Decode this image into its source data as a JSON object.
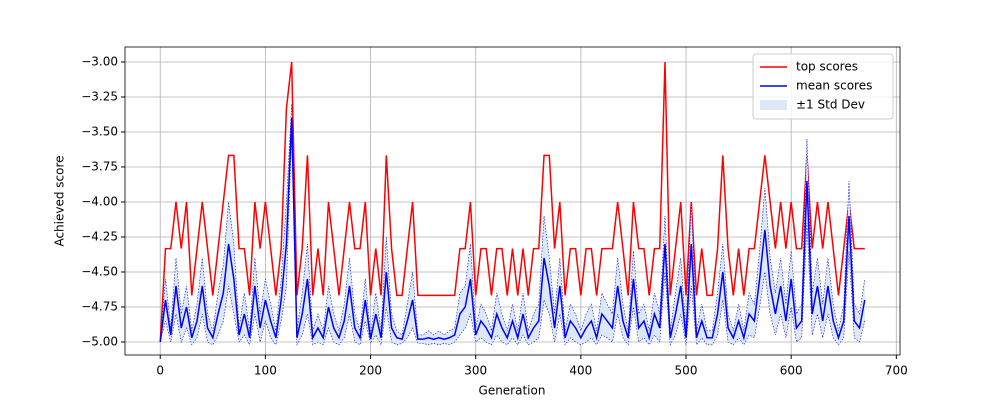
{
  "chart_data": {
    "type": "line",
    "x_label": "Generation",
    "y_label": "Achieved score",
    "x": [
      0,
      5,
      10,
      15,
      20,
      25,
      30,
      35,
      40,
      45,
      50,
      55,
      60,
      65,
      70,
      75,
      80,
      85,
      90,
      95,
      100,
      105,
      110,
      115,
      120,
      125,
      130,
      135,
      140,
      145,
      150,
      155,
      160,
      165,
      170,
      175,
      180,
      185,
      190,
      195,
      200,
      205,
      210,
      215,
      220,
      225,
      230,
      235,
      240,
      245,
      250,
      255,
      260,
      265,
      270,
      275,
      280,
      285,
      290,
      295,
      300,
      305,
      310,
      315,
      320,
      325,
      330,
      335,
      340,
      345,
      350,
      355,
      360,
      365,
      370,
      375,
      380,
      385,
      390,
      395,
      400,
      405,
      410,
      415,
      420,
      425,
      430,
      435,
      440,
      445,
      450,
      455,
      460,
      465,
      470,
      475,
      480,
      485,
      490,
      495,
      500,
      505,
      510,
      515,
      520,
      525,
      530,
      535,
      540,
      545,
      550,
      555,
      560,
      565,
      570,
      575,
      580,
      585,
      590,
      595,
      600,
      605,
      610,
      615,
      620,
      625,
      630,
      635,
      640,
      645,
      650,
      655,
      660,
      665,
      670
    ],
    "series": [
      {
        "name": "top scores",
        "color": "#ff0000",
        "values": [
          -5,
          -4.333,
          -4.333,
          -4,
          -4.333,
          -4,
          -4.667,
          -4.333,
          -4,
          -4.333,
          -4.667,
          -4.333,
          -4,
          -3.667,
          -3.667,
          -4.333,
          -4.333,
          -4.667,
          -4,
          -4.333,
          -4,
          -4.333,
          -4.667,
          -4.333,
          -3.333,
          -3,
          -4.667,
          -4.333,
          -3.667,
          -4.667,
          -4.333,
          -4.667,
          -4,
          -4.333,
          -4.667,
          -4.333,
          -4,
          -4.333,
          -4.333,
          -4,
          -4.667,
          -4.333,
          -4.667,
          -3.667,
          -4.333,
          -4.667,
          -4.667,
          -4.333,
          -4,
          -4.667,
          -4.667,
          -4.667,
          -4.667,
          -4.667,
          -4.667,
          -4.667,
          -4.667,
          -4.333,
          -4.333,
          -4,
          -4.667,
          -4.333,
          -4.333,
          -4.667,
          -4.333,
          -4.333,
          -4.667,
          -4.333,
          -4.667,
          -4.333,
          -4.667,
          -4.333,
          -4.333,
          -3.667,
          -3.667,
          -4.333,
          -4,
          -4.667,
          -4.333,
          -4.333,
          -4.667,
          -4.333,
          -4.333,
          -4.667,
          -4.333,
          -4.333,
          -4.333,
          -4,
          -4.333,
          -4.667,
          -4,
          -4.333,
          -4.333,
          -4.667,
          -4.333,
          -4.333,
          -3,
          -4.667,
          -4.333,
          -4,
          -4.667,
          -4,
          -4.667,
          -4.333,
          -4.667,
          -4.667,
          -4.333,
          -3.667,
          -4.333,
          -4.667,
          -4.333,
          -4.667,
          -4.333,
          -4.333,
          -4,
          -3.667,
          -4,
          -4.333,
          -4,
          -4.333,
          -4,
          -4.333,
          -4.333,
          -3.667,
          -4.333,
          -4,
          -4.333,
          -4,
          -4.333,
          -4.667,
          -4.333,
          -4,
          -4.333,
          -4.333,
          -4.333
        ]
      },
      {
        "name": "mean scores",
        "color": "#0000ff",
        "std_name": "±1 Std Dev",
        "std_color": "#dce9f5",
        "values": [
          -5,
          -4.7,
          -4.95,
          -4.6,
          -4.9,
          -4.75,
          -4.97,
          -4.85,
          -4.6,
          -4.9,
          -4.97,
          -4.8,
          -4.65,
          -4.3,
          -4.55,
          -4.95,
          -4.8,
          -4.97,
          -4.6,
          -4.9,
          -4.7,
          -4.85,
          -4.97,
          -4.7,
          -4.3,
          -3.4,
          -4.97,
          -4.8,
          -4.55,
          -4.97,
          -4.9,
          -4.97,
          -4.75,
          -4.9,
          -4.97,
          -4.85,
          -4.6,
          -4.9,
          -4.97,
          -4.7,
          -4.98,
          -4.8,
          -4.97,
          -4.5,
          -4.9,
          -4.97,
          -4.98,
          -4.85,
          -4.7,
          -4.98,
          -4.98,
          -4.97,
          -4.98,
          -4.97,
          -4.98,
          -4.97,
          -4.95,
          -4.8,
          -4.75,
          -4.55,
          -4.95,
          -4.85,
          -4.9,
          -4.97,
          -4.8,
          -4.9,
          -4.97,
          -4.85,
          -4.97,
          -4.8,
          -4.97,
          -4.9,
          -4.85,
          -4.4,
          -4.6,
          -4.9,
          -4.6,
          -4.97,
          -4.85,
          -4.9,
          -4.97,
          -4.9,
          -4.85,
          -4.97,
          -4.8,
          -4.85,
          -4.9,
          -4.6,
          -4.85,
          -4.97,
          -4.55,
          -4.9,
          -4.85,
          -4.97,
          -4.8,
          -4.9,
          -4.3,
          -4.97,
          -4.8,
          -4.6,
          -4.97,
          -4.3,
          -4.97,
          -4.85,
          -4.97,
          -4.97,
          -4.8,
          -4.5,
          -4.9,
          -4.97,
          -4.85,
          -4.97,
          -4.8,
          -4.85,
          -4.55,
          -4.2,
          -4.6,
          -4.8,
          -4.6,
          -4.85,
          -4.55,
          -4.9,
          -4.85,
          -3.85,
          -4.8,
          -4.6,
          -4.85,
          -4.6,
          -4.85,
          -4.97,
          -4.85,
          -4.1,
          -4.85,
          -4.9,
          -4.7
        ],
        "std": [
          0,
          0.15,
          0.05,
          0.2,
          0.1,
          0.15,
          0.05,
          0.12,
          0.2,
          0.1,
          0.05,
          0.15,
          0.2,
          0.3,
          0.25,
          0.05,
          0.15,
          0.05,
          0.2,
          0.1,
          0.15,
          0.12,
          0.05,
          0.15,
          0.3,
          0.1,
          0.05,
          0.15,
          0.25,
          0.05,
          0.1,
          0.05,
          0.15,
          0.1,
          0.05,
          0.12,
          0.2,
          0.1,
          0.05,
          0.15,
          0.03,
          0.15,
          0.05,
          0.25,
          0.1,
          0.05,
          0.03,
          0.12,
          0.2,
          0.03,
          0.03,
          0.05,
          0.03,
          0.05,
          0.03,
          0.05,
          0.05,
          0.15,
          0.15,
          0.25,
          0.05,
          0.12,
          0.1,
          0.05,
          0.15,
          0.1,
          0.05,
          0.12,
          0.05,
          0.15,
          0.05,
          0.1,
          0.12,
          0.3,
          0.2,
          0.1,
          0.2,
          0.05,
          0.12,
          0.1,
          0.05,
          0.1,
          0.12,
          0.05,
          0.15,
          0.12,
          0.1,
          0.2,
          0.12,
          0.05,
          0.2,
          0.1,
          0.12,
          0.05,
          0.15,
          0.1,
          0.2,
          0.05,
          0.15,
          0.2,
          0.05,
          0.3,
          0.05,
          0.12,
          0.05,
          0.05,
          0.15,
          0.2,
          0.1,
          0.05,
          0.12,
          0.05,
          0.15,
          0.12,
          0.2,
          0.3,
          0.2,
          0.15,
          0.2,
          0.12,
          0.2,
          0.1,
          0.12,
          0.3,
          0.15,
          0.2,
          0.12,
          0.2,
          0.12,
          0.05,
          0.12,
          0.25,
          0.12,
          0.1,
          0.15
        ]
      }
    ],
    "xlim": [
      -33.5,
      703.5
    ],
    "xticks": [
      0,
      100,
      200,
      300,
      400,
      500,
      600,
      700
    ],
    "ylim": [
      -5.093,
      -2.893
    ],
    "yticks": [
      {
        "value": -5,
        "label": "−5.00"
      },
      {
        "value": -4.75,
        "label": "−4.75"
      },
      {
        "value": -4.5,
        "label": "−4.50"
      },
      {
        "value": -4.25,
        "label": "−4.25"
      },
      {
        "value": -4,
        "label": "−4.00"
      },
      {
        "value": -3.75,
        "label": "−3.75"
      },
      {
        "value": -3.5,
        "label": "−3.50"
      },
      {
        "value": -3.25,
        "label": "−3.25"
      },
      {
        "value": -3,
        "label": "−3.00"
      }
    ],
    "grid": true,
    "legend": "upper right"
  }
}
